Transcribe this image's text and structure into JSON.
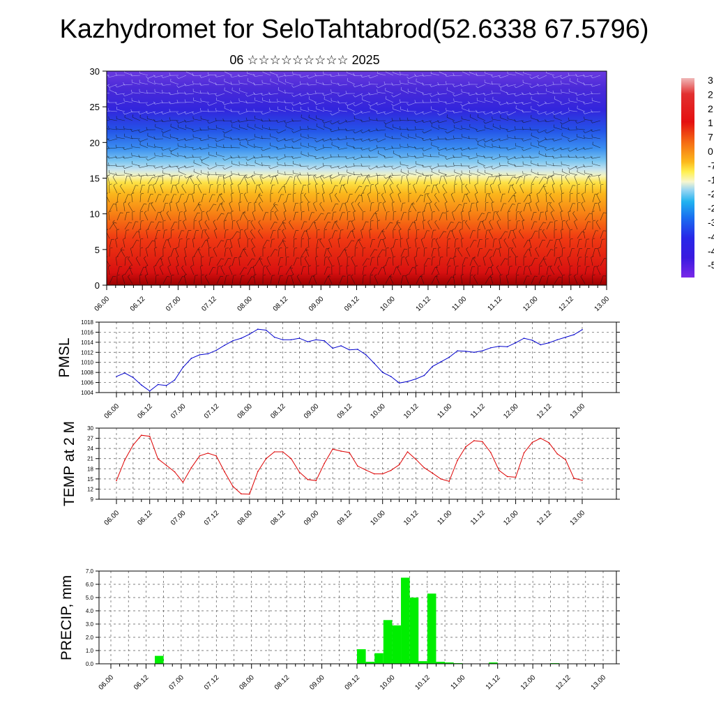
{
  "title": "Kazhydromet for SeloTahtabrod(52.6338 67.5796)",
  "subtitle": "06 ☆☆☆☆☆☆☆☆☆ 2025",
  "x_ticks": [
    "06.00",
    "06.12",
    "07.00",
    "07.12",
    "08.00",
    "08.12",
    "09.00",
    "09.12",
    "10.00",
    "10.12",
    "11.00",
    "11.12",
    "12.00",
    "12.12",
    "13.00"
  ],
  "colors": {
    "pmsl_line": "#0000cc",
    "temp_line": "#dd0000",
    "precip_bar": "#00ee00"
  },
  "chart_data": [
    {
      "type": "heatmap",
      "name": "cross-section",
      "xlabel": "",
      "ylabel": "",
      "x_range": [
        0,
        168
      ],
      "y_range": [
        0,
        30
      ],
      "y_ticks": [
        0,
        5,
        10,
        15,
        20,
        25,
        30
      ],
      "colorbar_labels": [
        "3",
        "2",
        "2",
        "1",
        "7",
        "0",
        "-7",
        "-1",
        "-2",
        "-2",
        "-3",
        "-4",
        "-4",
        "-5"
      ],
      "overlay": "wind barbs"
    },
    {
      "type": "line",
      "ylabel": "PMSL",
      "ylim": [
        1004,
        1018
      ],
      "y_ticks": [
        1004,
        1006,
        1008,
        1010,
        1012,
        1014,
        1016,
        1018
      ],
      "x_hours": [
        0,
        3,
        6,
        9,
        12,
        15,
        18,
        21,
        24,
        27,
        30,
        33,
        36,
        39,
        42,
        45,
        48,
        51,
        54,
        57,
        60,
        63,
        66,
        69,
        72,
        75,
        78,
        81,
        84,
        87,
        90,
        93,
        96,
        99,
        102,
        105,
        108,
        111,
        114,
        117,
        120,
        123,
        126,
        129,
        132,
        135,
        138,
        141,
        144,
        147,
        150,
        153,
        156,
        159,
        162,
        165,
        168
      ],
      "values": [
        1007.2,
        1007.9,
        1007.0,
        1005.5,
        1004.3,
        1005.6,
        1005.4,
        1006.5,
        1009.0,
        1010.8,
        1011.5,
        1011.7,
        1012.4,
        1013.4,
        1014.3,
        1014.8,
        1015.6,
        1016.6,
        1016.4,
        1015.0,
        1014.5,
        1014.5,
        1014.8,
        1014.1,
        1014.5,
        1014.3,
        1012.8,
        1013.3,
        1012.5,
        1012.6,
        1011.5,
        1009.8,
        1008.0,
        1007.2,
        1005.9,
        1006.2,
        1006.7,
        1007.4,
        1009.2,
        1010.1,
        1011.0,
        1012.3,
        1012.2,
        1012.0,
        1012.3,
        1012.9,
        1013.2,
        1013.1,
        1013.9,
        1014.8,
        1014.4,
        1013.5,
        1013.9,
        1014.5,
        1015.0,
        1015.5,
        1016.5
      ]
    },
    {
      "type": "line",
      "ylabel": "TEMP at 2 M",
      "ylim": [
        9,
        30
      ],
      "y_ticks": [
        9,
        12,
        15,
        18,
        21,
        24,
        27,
        30
      ],
      "x_hours": [
        0,
        3,
        6,
        9,
        12,
        15,
        18,
        21,
        24,
        27,
        30,
        33,
        36,
        39,
        42,
        45,
        48,
        51,
        54,
        57,
        60,
        63,
        66,
        69,
        72,
        75,
        78,
        81,
        84,
        87,
        90,
        93,
        96,
        99,
        102,
        105,
        108,
        111,
        114,
        117,
        120,
        123,
        126,
        129,
        132,
        135,
        138,
        141,
        144,
        147,
        150,
        153,
        156,
        159,
        162,
        165,
        168
      ],
      "values": [
        14.5,
        20.6,
        25.0,
        27.9,
        27.6,
        20.9,
        19.0,
        17.1,
        14.0,
        18.3,
        21.8,
        22.6,
        21.8,
        17.1,
        12.8,
        10.6,
        10.5,
        17.2,
        21.0,
        23.0,
        23.0,
        21.0,
        17.0,
        14.8,
        14.5,
        19.6,
        23.8,
        23.2,
        22.8,
        18.8,
        17.6,
        16.5,
        16.5,
        17.5,
        19.2,
        23.0,
        20.8,
        18.3,
        16.7,
        15.0,
        14.3,
        20.5,
        24.5,
        26.3,
        26.0,
        22.8,
        17.5,
        15.7,
        15.5,
        22.7,
        25.8,
        27.0,
        25.7,
        22.4,
        20.7,
        15.2,
        14.6
      ]
    },
    {
      "type": "bar",
      "ylabel": "PRECIP, mm",
      "ylim": [
        0,
        7
      ],
      "y_ticks": [
        "0.0",
        "1.0",
        "2.0",
        "3.0",
        "4.0",
        "5.0",
        "6.0",
        "7.0"
      ],
      "bar_width_hours": 3,
      "x_hours": [
        15,
        84,
        87,
        90,
        93,
        96,
        99,
        102,
        105,
        108,
        111,
        114,
        117,
        129,
        150
      ],
      "values": [
        0.6,
        1.1,
        0.15,
        0.8,
        3.3,
        2.9,
        6.5,
        5.0,
        0.2,
        5.3,
        0.15,
        0.1,
        0.05,
        0.1,
        0.05
      ]
    }
  ]
}
